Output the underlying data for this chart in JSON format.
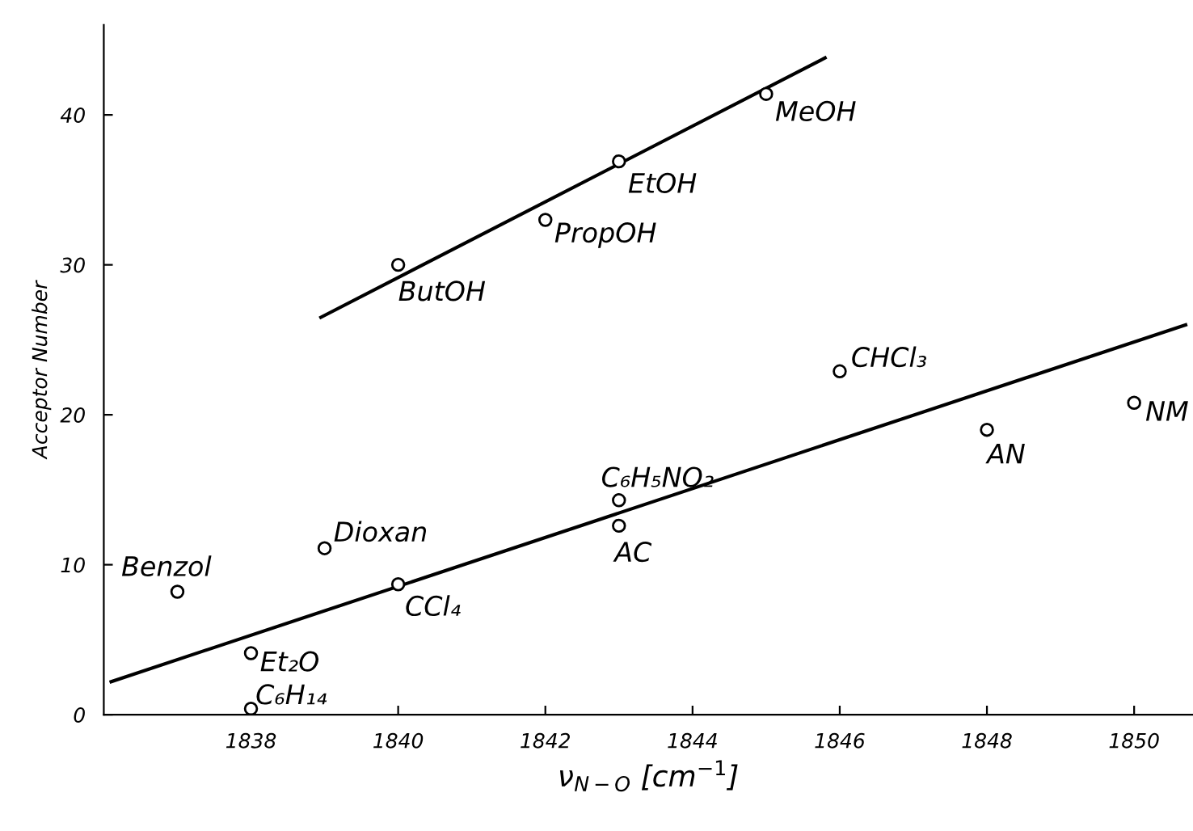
{
  "chart_data": {
    "type": "scatter",
    "xlabel": "ν$_{N−O}$ [cm$^{−1}$]",
    "ylabel": "Acceptor Number",
    "xlim": [
      1836,
      1850.8
    ],
    "ylim": [
      0,
      46
    ],
    "xticks": [
      1838,
      1840,
      1842,
      1844,
      1846,
      1848,
      1850
    ],
    "yticks": [
      0,
      10,
      20,
      30,
      40
    ],
    "grid": false,
    "legend": false,
    "marker": "circle",
    "series": [
      {
        "color": "#000000",
        "x": [
          1837,
          1839,
          1840,
          1838,
          1838,
          1843,
          1843,
          1846,
          1848,
          1850,
          1840,
          1842,
          1843,
          1845
        ],
        "values": [
          8.2,
          11.1,
          8.7,
          4.1,
          0.4,
          14.3,
          12.6,
          22.9,
          19.0,
          20.8,
          30.0,
          33.0,
          36.9,
          41.4
        ]
      },
      {
        "type": "line",
        "color": "#000000",
        "marker": "none",
        "x": [
          1836.1,
          1850.7
        ],
        "values": [
          2.2,
          26.0
        ]
      },
      {
        "type": "line",
        "color": "#000000",
        "marker": "none",
        "x": [
          1838.95,
          1845.8
        ],
        "values": [
          26.5,
          43.8
        ]
      }
    ],
    "annotations": [
      {
        "text": "Benzol",
        "x": 1837,
        "y": 8.2
      },
      {
        "text": "Dioxan",
        "x": 1839,
        "y": 11.1
      },
      {
        "text": "CCl₄",
        "x": 1840,
        "y": 8.7
      },
      {
        "text": "Et₂O",
        "x": 1838,
        "y": 4.1
      },
      {
        "text": "C₆H₁₄",
        "x": 1838,
        "y": 0.4
      },
      {
        "text": "C₆H₅NO₂",
        "x": 1843,
        "y": 14.3
      },
      {
        "text": "AC",
        "x": 1843,
        "y": 12.6
      },
      {
        "text": "CHCl₃",
        "x": 1846,
        "y": 22.9
      },
      {
        "text": "AN",
        "x": 1848,
        "y": 19.0
      },
      {
        "text": "NM",
        "x": 1850,
        "y": 20.8
      },
      {
        "text": "ButOH",
        "x": 1840,
        "y": 30.0
      },
      {
        "text": "PropOH",
        "x": 1842,
        "y": 33.0
      },
      {
        "text": "EtOH",
        "x": 1843,
        "y": 36.9
      },
      {
        "text": "MeOH",
        "x": 1845,
        "y": 41.4
      }
    ]
  }
}
